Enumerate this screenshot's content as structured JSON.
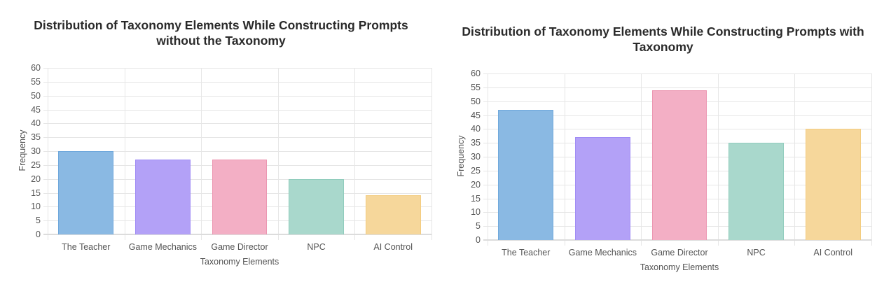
{
  "chart_data": [
    {
      "type": "bar",
      "title": "Distribution of Taxonomy Elements While Constructing Prompts without the Taxonomy",
      "title_lines": [
        "Distribution of Taxonomy Elements While Constructing Prompts",
        "without the Taxonomy"
      ],
      "categories": [
        "The Teacher",
        "Game Mechanics",
        "Game Director",
        "NPC",
        "AI Control"
      ],
      "values": [
        30,
        27,
        27,
        20,
        14
      ],
      "colors": [
        "#8ab9e3",
        "#b3a1f7",
        "#f3afc5",
        "#a9d8cc",
        "#f6d79b"
      ],
      "border_colors": [
        "#6fa8dc",
        "#a08cf5",
        "#ec97b2",
        "#91cdbd",
        "#f3cc80"
      ],
      "xlabel": "Taxonomy Elements",
      "ylabel": "Frequency",
      "ylim": [
        0,
        60
      ],
      "yticks": [
        0,
        5,
        10,
        15,
        20,
        25,
        30,
        35,
        40,
        45,
        50,
        55,
        60
      ],
      "grid": true,
      "legend": false
    },
    {
      "type": "bar",
      "title": "Distribution of Taxonomy Elements While Constructing Prompts with Taxonomy",
      "title_lines": [
        "Distribution of Taxonomy Elements While Constructing Prompts with",
        "Taxonomy"
      ],
      "categories": [
        "The Teacher",
        "Game Mechanics",
        "Game Director",
        "NPC",
        "AI Control"
      ],
      "values": [
        47,
        37,
        54,
        35,
        40
      ],
      "colors": [
        "#8ab9e3",
        "#b3a1f7",
        "#f3afc5",
        "#a9d8cc",
        "#f6d79b"
      ],
      "border_colors": [
        "#6fa8dc",
        "#a08cf5",
        "#ec97b2",
        "#91cdbd",
        "#f3cc80"
      ],
      "xlabel": "Taxonomy Elements",
      "ylabel": "Frequency",
      "ylim": [
        0,
        60
      ],
      "yticks": [
        0,
        5,
        10,
        15,
        20,
        25,
        30,
        35,
        40,
        45,
        50,
        55,
        60
      ],
      "grid": true,
      "legend": false
    }
  ]
}
